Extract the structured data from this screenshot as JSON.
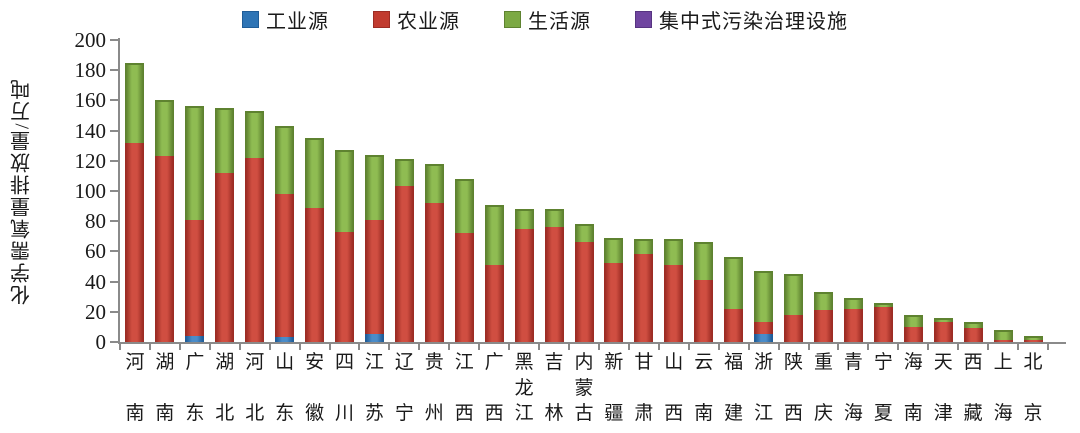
{
  "chart_data": {
    "type": "bar",
    "stacked": true,
    "orientation": "vertical",
    "title": "",
    "xlabel": "",
    "ylabel": "化学需氧量排放量/万吨",
    "unit": "万吨",
    "ylim": [
      0,
      200
    ],
    "ytick_step": 20,
    "yticks": [
      0,
      20,
      40,
      60,
      80,
      100,
      120,
      140,
      160,
      180,
      200
    ],
    "grid": false,
    "legend_position": "top",
    "categories": [
      "河南",
      "湖南",
      "广东",
      "湖北",
      "河北",
      "山东",
      "安徽",
      "四川",
      "江苏",
      "辽宁",
      "贵州",
      "江西",
      "广西",
      "黑龙江",
      "吉林",
      "内蒙古",
      "新疆",
      "甘肃",
      "山西",
      "云南",
      "福建",
      "浙江",
      "陕西",
      "重庆",
      "青海",
      "宁夏",
      "海南",
      "天津",
      "西藏",
      "上海",
      "北京"
    ],
    "series": [
      {
        "name": "工业源",
        "color": "#2E74B5",
        "light": "#4A8CC9",
        "dark": "#1F5C97",
        "values": [
          0,
          0,
          4,
          0,
          0,
          3,
          0,
          0,
          5,
          0,
          0,
          0,
          0,
          0,
          0,
          0,
          0,
          0,
          0,
          0,
          0,
          5,
          0,
          0,
          0,
          0,
          0,
          0,
          0,
          0,
          0
        ]
      },
      {
        "name": "农业源",
        "color": "#C13B2F",
        "light": "#D04E41",
        "dark": "#9C2C24",
        "values": [
          132,
          123,
          77,
          112,
          122,
          95,
          89,
          73,
          76,
          103,
          92,
          72,
          51,
          75,
          76,
          66,
          52,
          58,
          51,
          41,
          22,
          8,
          18,
          21,
          22,
          23,
          10,
          13,
          9,
          1,
          1
        ]
      },
      {
        "name": "生活源",
        "color": "#7CA944",
        "light": "#8FBC52",
        "dark": "#5E8230",
        "values": [
          53,
          37,
          75,
          43,
          31,
          45,
          46,
          54,
          43,
          18,
          26,
          36,
          40,
          13,
          12,
          12,
          17,
          10,
          17,
          25,
          34,
          34,
          27,
          12,
          7,
          3,
          8,
          3,
          4,
          7,
          3
        ]
      },
      {
        "name": "集中式污染治理设施",
        "color": "#7045A0",
        "light": "#8257B3",
        "dark": "#573481",
        "values": [
          0,
          0,
          0,
          0,
          0,
          0,
          0,
          0,
          0,
          0,
          0,
          0,
          0,
          0,
          0,
          0,
          0,
          0,
          0,
          0,
          0,
          0,
          0,
          0,
          0,
          0,
          0,
          0,
          0,
          0,
          0
        ]
      }
    ]
  },
  "colors": {
    "axis": "#8a8a8a",
    "text": "#1a1a1a",
    "background": "#ffffff"
  }
}
